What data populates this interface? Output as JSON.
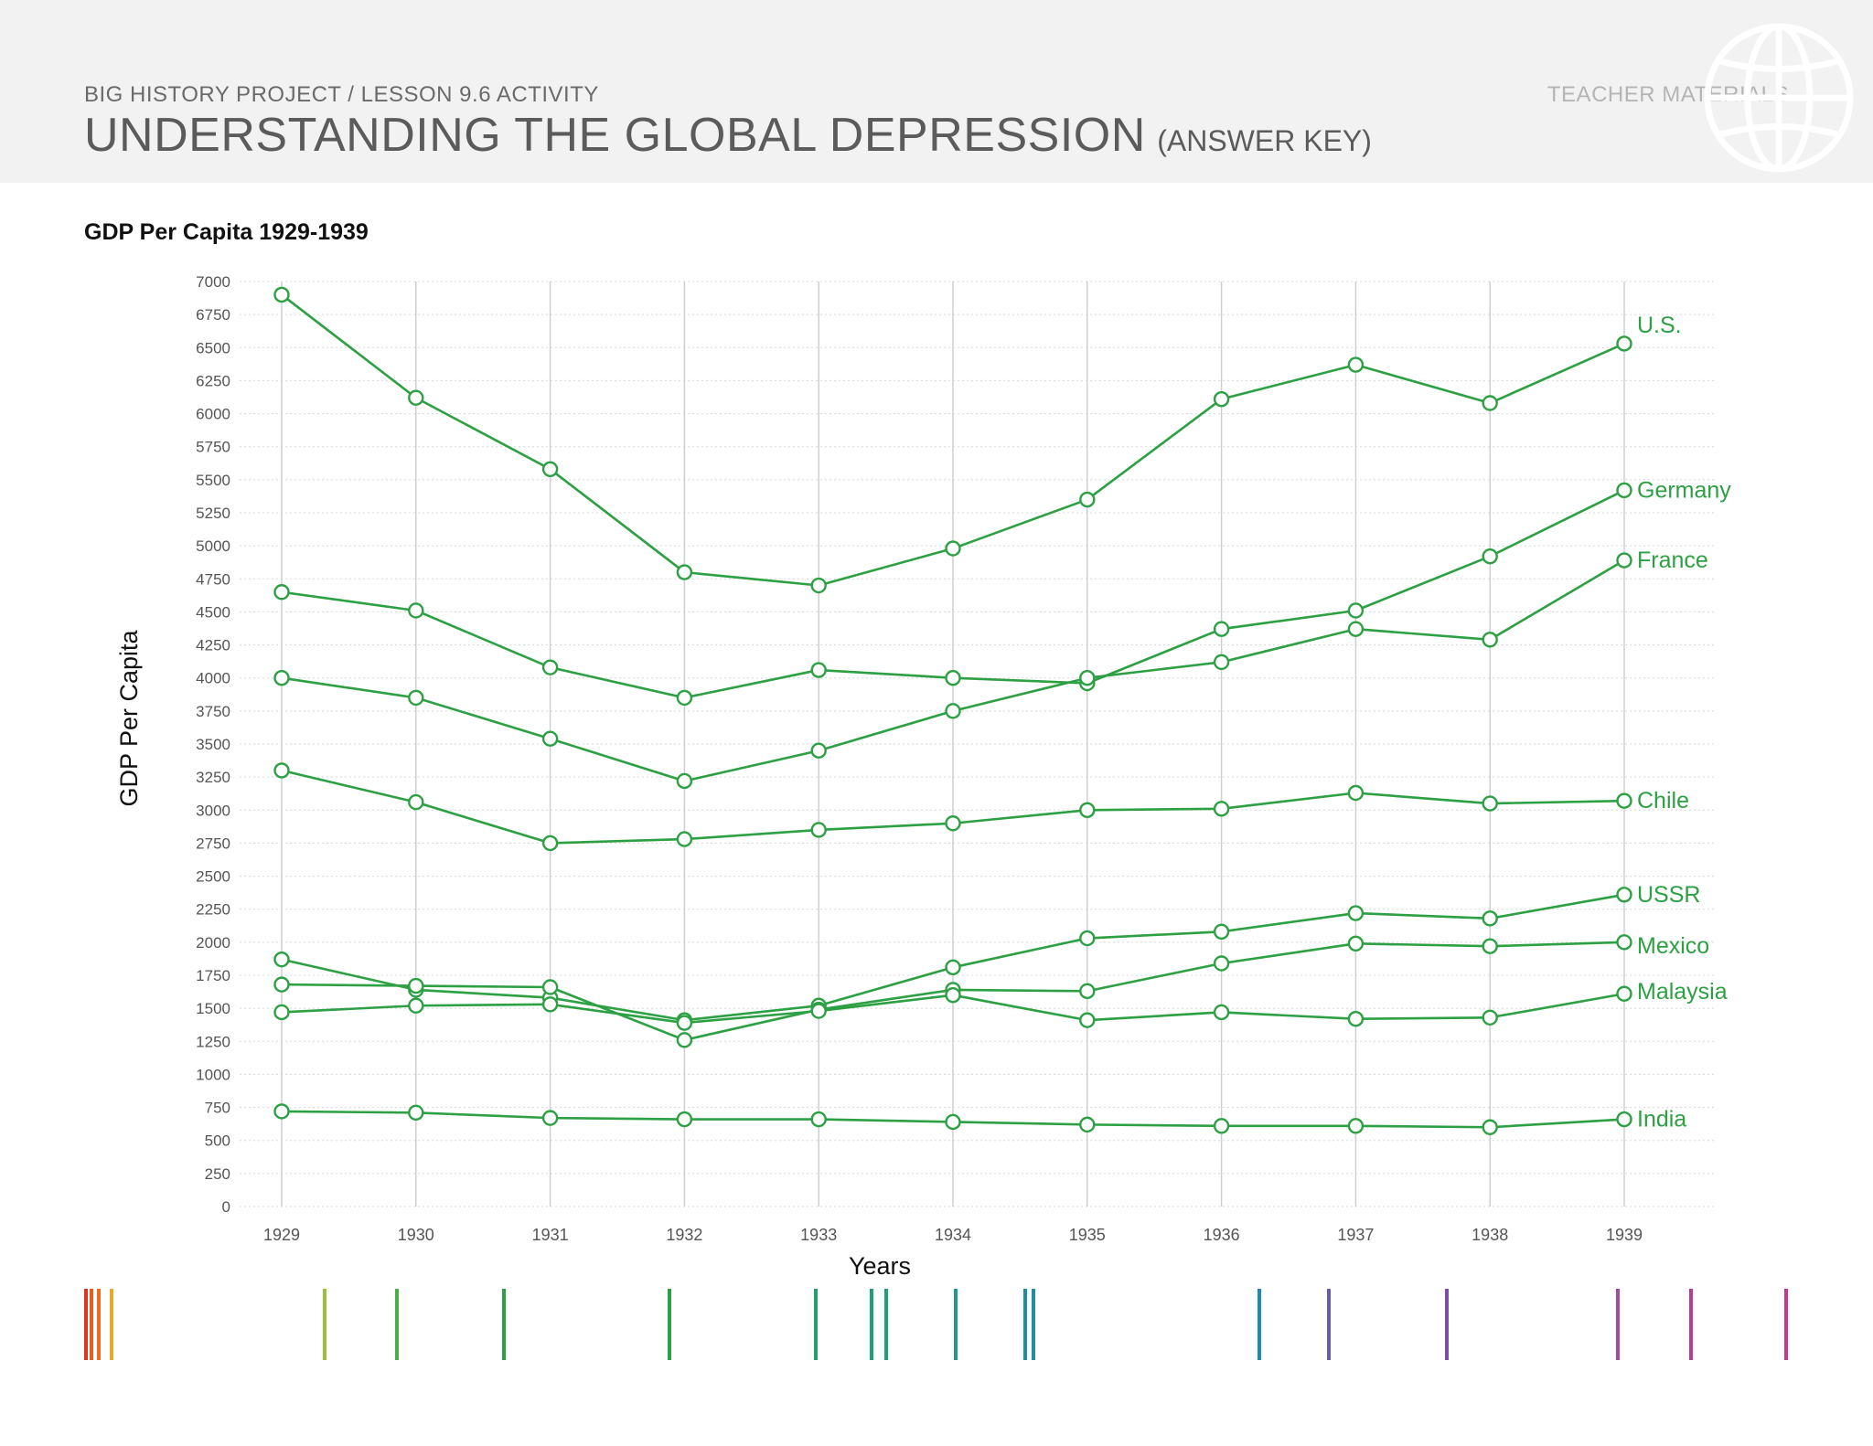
{
  "header": {
    "kicker": "BIG HISTORY PROJECT / LESSON 9.6 ACTIVITY",
    "title": "UNDERSTANDING THE GLOBAL DEPRESSION",
    "subtitle": "(ANSWER KEY)",
    "badge": "TEACHER MATERIALS",
    "logo_icon": "globe-icon"
  },
  "colors": {
    "series": "#2ca043",
    "header_bg": "#f2f2f2",
    "grid": "#cfcfcf"
  },
  "chart_data": {
    "type": "line",
    "title": "GDP Per Capita 1929-1939",
    "xlabel": "Years",
    "ylabel": "GDP Per Capita",
    "x": [
      1929,
      1930,
      1931,
      1932,
      1933,
      1934,
      1935,
      1936,
      1937,
      1938,
      1939
    ],
    "ylim": [
      0,
      7000
    ],
    "yticks": [
      0,
      250,
      500,
      750,
      1000,
      1250,
      1500,
      1750,
      2000,
      2250,
      2500,
      2750,
      3000,
      3250,
      3500,
      3750,
      4000,
      4250,
      4500,
      4750,
      5000,
      5250,
      5500,
      5750,
      6000,
      6250,
      6500,
      6750,
      7000
    ],
    "grid": true,
    "legend": "direct labels at line ends",
    "series": [
      {
        "name": "U.S.",
        "values": [
          6900,
          6120,
          5580,
          4800,
          4700,
          4980,
          5350,
          6110,
          6370,
          6080,
          6530
        ]
      },
      {
        "name": "Germany",
        "values": [
          4650,
          4510,
          4080,
          3850,
          4060,
          4000,
          3960,
          4370,
          4510,
          4920,
          5420
        ]
      },
      {
        "name": "France",
        "values": [
          4000,
          3850,
          3540,
          3220,
          3450,
          3750,
          4000,
          4120,
          4370,
          4290,
          4890
        ]
      },
      {
        "name": "Chile",
        "values": [
          3300,
          3060,
          2750,
          2780,
          2850,
          2900,
          3000,
          3010,
          3130,
          3050,
          3070
        ]
      },
      {
        "name": "USSR",
        "values": [
          1870,
          1640,
          1580,
          1410,
          1520,
          1810,
          2030,
          2080,
          2220,
          2180,
          2360
        ]
      },
      {
        "name": "Mexico",
        "values": [
          1680,
          1670,
          1660,
          1260,
          1490,
          1640,
          1630,
          1840,
          1990,
          1970,
          2000
        ]
      },
      {
        "name": "Malaysia",
        "values": [
          1470,
          1520,
          1530,
          1390,
          1480,
          1600,
          1410,
          1470,
          1420,
          1430,
          1610
        ]
      },
      {
        "name": "India",
        "values": [
          720,
          710,
          670,
          660,
          660,
          640,
          620,
          610,
          610,
          600,
          660
        ]
      }
    ]
  }
}
